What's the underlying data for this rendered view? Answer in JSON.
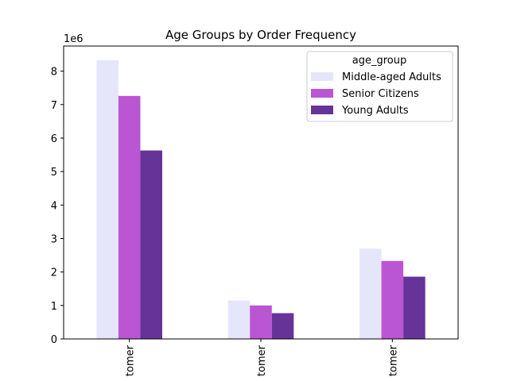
{
  "chart_data": {
    "type": "bar",
    "title": "Age Groups by Order Frequency",
    "xlabel": "",
    "ylabel": "",
    "y_offset_label": "1e6",
    "categories": [
      "tomer",
      "tomer",
      "tomer"
    ],
    "ylim": [
      0,
      8.75
    ],
    "yticks": [
      0,
      1,
      2,
      3,
      4,
      5,
      6,
      7,
      8
    ],
    "legend": {
      "title": "age_group",
      "position": "upper right"
    },
    "series": [
      {
        "name": "Middle-aged Adults",
        "color": "#e6e6fa",
        "values": [
          8.33,
          1.15,
          2.7
        ]
      },
      {
        "name": "Senior Citizens",
        "color": "#ba55d3",
        "values": [
          7.26,
          1.0,
          2.33
        ]
      },
      {
        "name": "Young Adults",
        "color": "#663399",
        "values": [
          5.63,
          0.77,
          1.86
        ]
      }
    ]
  }
}
